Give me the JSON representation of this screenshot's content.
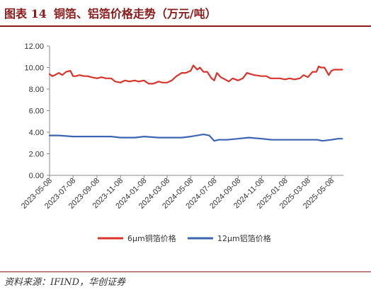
{
  "header": {
    "figure_label": "图表 14",
    "title": "铜箔、铝箔价格走势（万元/吨）"
  },
  "source": {
    "text": "资料来源：IFIND，华创证券"
  },
  "chart_data": {
    "type": "line",
    "title": "铜箔、铝箔价格走势（万元/吨）",
    "xlabel": "",
    "ylabel": "",
    "ylim": [
      0,
      12
    ],
    "yticks": [
      0,
      2,
      4,
      6,
      8,
      10,
      12
    ],
    "ytick_labels": [
      "0.00",
      "2.00",
      "4.00",
      "6.00",
      "8.00",
      "10.00",
      "12.00"
    ],
    "xticks": [
      "2023-05-08",
      "2023-07-08",
      "2023-09-08",
      "2023-11-08",
      "2024-01-08",
      "2024-03-08",
      "2024-05-08",
      "2024-07-08",
      "2024-09-08",
      "2024-11-08",
      "2025-01-08",
      "2025-03-08",
      "2025-05-08"
    ],
    "grid": false,
    "legend_position": "bottom",
    "series": [
      {
        "name": "6μm铜箔价格",
        "color": "#d9342b",
        "x": [
          "2023-05-08",
          "2023-05-15",
          "2023-05-22",
          "2023-06-01",
          "2023-06-10",
          "2023-06-20",
          "2023-07-01",
          "2023-07-08",
          "2023-07-15",
          "2023-07-25",
          "2023-08-05",
          "2023-08-15",
          "2023-08-25",
          "2023-09-08",
          "2023-09-20",
          "2023-10-01",
          "2023-10-15",
          "2023-10-25",
          "2023-11-08",
          "2023-11-20",
          "2023-12-01",
          "2023-12-15",
          "2023-12-25",
          "2024-01-08",
          "2024-01-20",
          "2024-02-01",
          "2024-02-15",
          "2024-02-25",
          "2024-03-08",
          "2024-03-20",
          "2024-04-01",
          "2024-04-15",
          "2024-04-25",
          "2024-05-08",
          "2024-05-15",
          "2024-05-25",
          "2024-06-01",
          "2024-06-10",
          "2024-06-20",
          "2024-07-01",
          "2024-07-08",
          "2024-07-15",
          "2024-07-25",
          "2024-08-05",
          "2024-08-15",
          "2024-08-25",
          "2024-09-08",
          "2024-09-20",
          "2024-10-01",
          "2024-10-10",
          "2024-10-20",
          "2024-11-08",
          "2024-11-20",
          "2024-12-01",
          "2024-12-15",
          "2024-12-25",
          "2025-01-08",
          "2025-01-20",
          "2025-02-01",
          "2025-02-15",
          "2025-02-25",
          "2025-03-08",
          "2025-03-20",
          "2025-03-30",
          "2025-04-05",
          "2025-04-10",
          "2025-04-20",
          "2025-05-01",
          "2025-05-08",
          "2025-05-15",
          "2025-05-25",
          "2025-06-05"
        ],
        "values": [
          9.4,
          9.2,
          9.3,
          9.5,
          9.3,
          9.6,
          9.7,
          9.2,
          9.2,
          9.3,
          9.2,
          9.2,
          9.1,
          9.0,
          9.1,
          9.0,
          9.0,
          8.7,
          8.6,
          8.8,
          8.7,
          8.8,
          8.7,
          8.8,
          8.5,
          8.5,
          8.7,
          8.6,
          8.6,
          8.8,
          9.2,
          9.5,
          9.5,
          9.7,
          10.2,
          9.8,
          10.0,
          9.6,
          9.6,
          9.0,
          8.8,
          9.5,
          9.1,
          8.9,
          8.7,
          9.0,
          8.8,
          9.0,
          9.5,
          9.4,
          9.3,
          9.2,
          9.2,
          9.0,
          9.0,
          9.0,
          8.9,
          9.0,
          8.9,
          9.0,
          9.3,
          9.1,
          9.6,
          9.6,
          10.1,
          10.0,
          10.0,
          9.3,
          9.7,
          9.8,
          9.8,
          9.8
        ]
      },
      {
        "name": "12μm铝箔价格",
        "color": "#3c64b4",
        "x": [
          "2023-05-08",
          "2023-06-01",
          "2023-07-08",
          "2023-08-15",
          "2023-09-08",
          "2023-10-15",
          "2023-11-08",
          "2023-12-15",
          "2024-01-08",
          "2024-02-15",
          "2024-03-08",
          "2024-04-15",
          "2024-05-08",
          "2024-05-25",
          "2024-06-10",
          "2024-06-25",
          "2024-07-08",
          "2024-07-20",
          "2024-08-10",
          "2024-09-08",
          "2024-10-05",
          "2024-11-08",
          "2024-12-05",
          "2025-01-08",
          "2025-02-10",
          "2025-03-08",
          "2025-04-01",
          "2025-04-15",
          "2025-05-08",
          "2025-05-25",
          "2025-06-05"
        ],
        "values": [
          3.7,
          3.7,
          3.6,
          3.6,
          3.6,
          3.6,
          3.5,
          3.5,
          3.6,
          3.5,
          3.5,
          3.5,
          3.6,
          3.7,
          3.8,
          3.7,
          3.2,
          3.3,
          3.3,
          3.4,
          3.5,
          3.4,
          3.3,
          3.3,
          3.3,
          3.3,
          3.3,
          3.2,
          3.3,
          3.4,
          3.4
        ]
      }
    ]
  }
}
